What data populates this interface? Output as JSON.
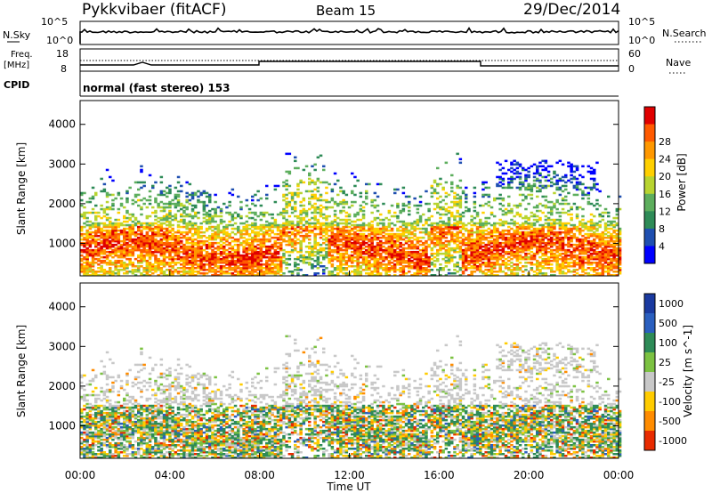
{
  "header": {
    "station": "Pykkvibaer (fitACF)",
    "beam": "Beam 15",
    "date": "29/Dec/2014"
  },
  "top_panels": {
    "nsky_label": "N.Sky",
    "nsearch_label": "N.Search",
    "noise_ticks_left": [
      "10^5",
      "10^0"
    ],
    "noise_ticks_right": [
      "10^5",
      "10^0"
    ],
    "freq_label": "Freq.",
    "freq_unit": "[MHz]",
    "freq_ticks": [
      "18",
      "8"
    ],
    "nave_label": "Nave",
    "nave_ticks": [
      "60",
      "0"
    ],
    "cpid_label": "CPID",
    "cpid_text": "normal (fast stereo) 153"
  },
  "colors": {
    "power": [
      "#0000ff",
      "#1f4fb0",
      "#2e8b57",
      "#5dae5d",
      "#b8d430",
      "#ffd000",
      "#ff9800",
      "#ff5a00",
      "#e00000"
    ],
    "velocity": [
      "#1a3aa0",
      "#2a5fbf",
      "#2e8b57",
      "#7cc242",
      "#c8c8c8",
      "#ffcc00",
      "#ff8c00",
      "#e82b00"
    ]
  },
  "chart_data": [
    {
      "type": "heatmap",
      "title": "Power",
      "ylabel": "Slant Range [km]",
      "yticks": [
        "1000",
        "2000",
        "3000",
        "4000"
      ],
      "ylim": [
        180,
        4600
      ],
      "colorbar_label": "Power [dB]",
      "colorbar_ticks": [
        "4",
        "8",
        "12",
        "16",
        "20",
        "24",
        "28"
      ],
      "xlim": [
        "00:00",
        "24:00"
      ]
    },
    {
      "type": "heatmap",
      "title": "Velocity",
      "ylabel": "Slant Range [km]",
      "yticks": [
        "1000",
        "2000",
        "3000",
        "4000"
      ],
      "ylim": [
        180,
        4600
      ],
      "colorbar_label": "Velocity [m s^-1]",
      "colorbar_ticks": [
        "1000",
        "500",
        "100",
        "25",
        "-25",
        "-100",
        "-500",
        "-1000"
      ],
      "xlabel": "Time UT",
      "xticks": [
        "00:00",
        "04:00",
        "08:00",
        "12:00",
        "16:00",
        "20:00",
        "00:00"
      ],
      "xlim": [
        "00:00",
        "24:00"
      ]
    }
  ]
}
